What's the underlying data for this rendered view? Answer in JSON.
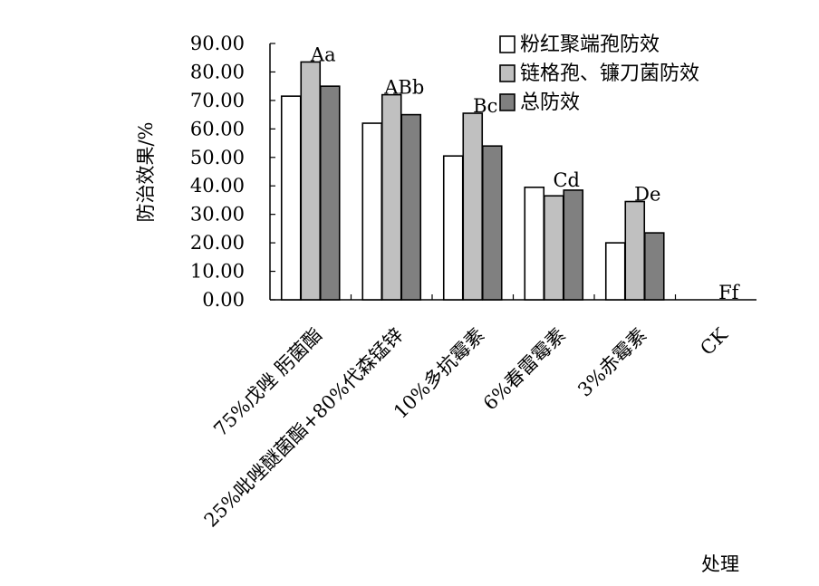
{
  "chart_data": {
    "type": "bar",
    "ylabel": "防治效果/%",
    "xlabel": "处理",
    "ylim": [
      0,
      90
    ],
    "ytick_step": 10,
    "ytick_labels": [
      "0.00",
      "10.00",
      "20.00",
      "30.00",
      "40.00",
      "50.00",
      "60.00",
      "70.00",
      "80.00",
      "90.00"
    ],
    "grid": false,
    "legend_position": "top-right",
    "categories": [
      "75%戊唑 肟菌酯",
      "25%吡唑醚菌酯+80%代森锰锌",
      "10%多抗霉素",
      "6%春雷霉素",
      "3%赤霉素",
      "CK"
    ],
    "series": [
      {
        "name": "粉红聚端孢防效",
        "color": "#ffffff",
        "values": [
          71.5,
          62.0,
          50.5,
          39.5,
          20.0,
          0
        ]
      },
      {
        "name": "链格孢、镰刀菌防效",
        "color": "#c0c0c0",
        "values": [
          83.5,
          72.0,
          65.5,
          36.5,
          34.5,
          0
        ]
      },
      {
        "name": "总防效",
        "color": "#808080",
        "values": [
          75.0,
          65.0,
          54.0,
          38.5,
          23.5,
          0
        ]
      }
    ],
    "annotations": [
      "Aa",
      "ABb",
      "Bc",
      "Cd",
      "De",
      "Ff"
    ]
  }
}
